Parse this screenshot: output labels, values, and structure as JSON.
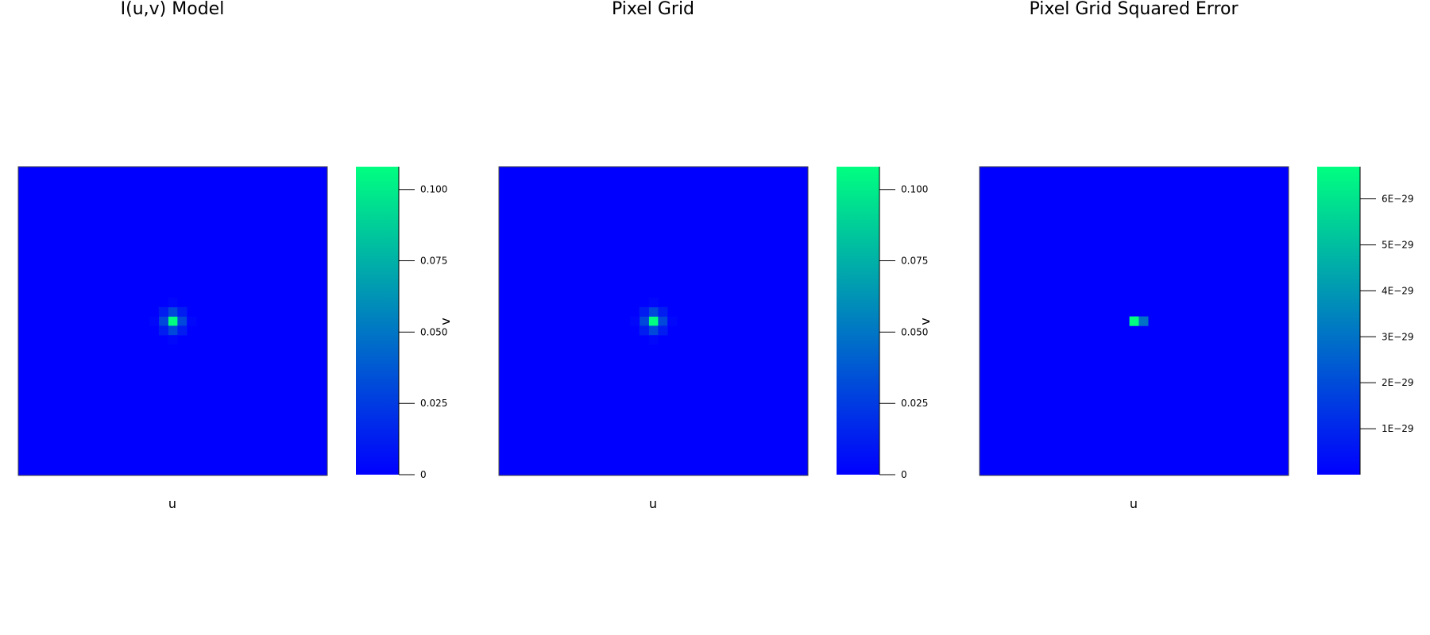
{
  "chart_data": [
    {
      "type": "heatmap",
      "title": "I(u,v) Model",
      "xlabel": "u",
      "ylabel": "v",
      "colormap": [
        "#0000ff",
        "#00ff80"
      ],
      "grid": false,
      "legend": "colorbar-right",
      "clim": [
        0,
        0.108
      ],
      "colorbar_ticks": [
        {
          "value": 0,
          "label": "0"
        },
        {
          "value": 0.025,
          "label": "0.025"
        },
        {
          "value": 0.05,
          "label": "0.050"
        },
        {
          "value": 0.075,
          "label": "0.075"
        },
        {
          "value": 0.1,
          "label": "0.100"
        }
      ],
      "grid_size": 33,
      "center": [
        16,
        16
      ],
      "cells": [
        {
          "di": 0,
          "dj": 0,
          "v": 0.108
        },
        {
          "di": -1,
          "dj": 0,
          "v": 0.03
        },
        {
          "di": 1,
          "dj": 0,
          "v": 0.03
        },
        {
          "di": 0,
          "dj": -1,
          "v": 0.03
        },
        {
          "di": 0,
          "dj": 1,
          "v": 0.03
        },
        {
          "di": -1,
          "dj": -1,
          "v": 0.012
        },
        {
          "di": -1,
          "dj": 1,
          "v": 0.012
        },
        {
          "di": 1,
          "dj": -1,
          "v": 0.012
        },
        {
          "di": 1,
          "dj": 1,
          "v": 0.012
        },
        {
          "di": -2,
          "dj": 0,
          "v": 0.003
        },
        {
          "di": 2,
          "dj": 0,
          "v": 0.003
        },
        {
          "di": 0,
          "dj": -2,
          "v": 0.003
        },
        {
          "di": 0,
          "dj": 2,
          "v": 0.003
        }
      ]
    },
    {
      "type": "heatmap",
      "title": "Pixel Grid",
      "xlabel": "u",
      "ylabel": "v",
      "colormap": [
        "#0000ff",
        "#00ff80"
      ],
      "grid": false,
      "legend": "colorbar-right",
      "clim": [
        0,
        0.108
      ],
      "colorbar_ticks": [
        {
          "value": 0,
          "label": "0"
        },
        {
          "value": 0.025,
          "label": "0.025"
        },
        {
          "value": 0.05,
          "label": "0.050"
        },
        {
          "value": 0.075,
          "label": "0.075"
        },
        {
          "value": 0.1,
          "label": "0.100"
        }
      ],
      "grid_size": 33,
      "center": [
        16,
        16
      ],
      "cells": [
        {
          "di": 0,
          "dj": 0,
          "v": 0.108
        },
        {
          "di": -1,
          "dj": 0,
          "v": 0.03
        },
        {
          "di": 1,
          "dj": 0,
          "v": 0.03
        },
        {
          "di": 0,
          "dj": -1,
          "v": 0.03
        },
        {
          "di": 0,
          "dj": 1,
          "v": 0.03
        },
        {
          "di": -1,
          "dj": -1,
          "v": 0.012
        },
        {
          "di": -1,
          "dj": 1,
          "v": 0.012
        },
        {
          "di": 1,
          "dj": -1,
          "v": 0.012
        },
        {
          "di": 1,
          "dj": 1,
          "v": 0.012
        },
        {
          "di": -2,
          "dj": 0,
          "v": 0.003
        },
        {
          "di": 2,
          "dj": 0,
          "v": 0.003
        },
        {
          "di": 0,
          "dj": -2,
          "v": 0.003
        },
        {
          "di": 0,
          "dj": 2,
          "v": 0.003
        }
      ]
    },
    {
      "type": "heatmap",
      "title": "Pixel Grid Squared Error",
      "xlabel": "u",
      "ylabel": "",
      "colormap": [
        "#0000ff",
        "#00ff80"
      ],
      "grid": false,
      "legend": "colorbar-right",
      "clim": [
        0,
        6.7e-29
      ],
      "colorbar_ticks": [
        {
          "value": 1e-29,
          "label": "1E−29"
        },
        {
          "value": 2e-29,
          "label": "2E−29"
        },
        {
          "value": 3e-29,
          "label": "3E−29"
        },
        {
          "value": 4e-29,
          "label": "4E−29"
        },
        {
          "value": 5e-29,
          "label": "5E−29"
        },
        {
          "value": 6e-29,
          "label": "6E−29"
        }
      ],
      "grid_size": 33,
      "center": [
        16,
        16
      ],
      "cells": [
        {
          "di": 0,
          "dj": 0,
          "v": 6.7e-29
        },
        {
          "di": 1,
          "dj": 0,
          "v": 3e-29
        }
      ]
    }
  ]
}
